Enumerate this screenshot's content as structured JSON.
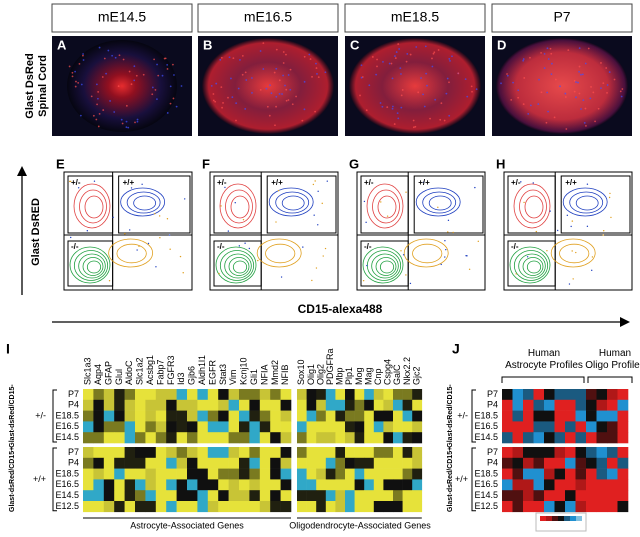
{
  "columns": [
    {
      "letter": "A",
      "stage": "mE14.5"
    },
    {
      "letter": "B",
      "stage": "mE16.5"
    },
    {
      "letter": "C",
      "stage": "mE18.5"
    },
    {
      "letter": "D",
      "stage": "P7"
    }
  ],
  "image_row_label": [
    "Glast DsRed",
    "Spinal Cord"
  ],
  "flow": {
    "letters": [
      "E",
      "F",
      "G",
      "H"
    ],
    "y_label": "Glast DsRED",
    "x_label": "CD15-alexa488",
    "gates": [
      "+/-",
      "+/+",
      "-/-"
    ]
  },
  "heatmap_i": {
    "letter": "I",
    "astrocyte_genes": [
      "Slc1a3",
      "Aqp4",
      "GFAP",
      "Glul",
      "AldoC",
      "Slc1a2",
      "Acsbg1",
      "Fabp7",
      "FGFR3",
      "Id3",
      "Gjb6",
      "Aldh1l1",
      "EGFR",
      "Stat3",
      "Vim",
      "Kcnj10",
      "Gli1",
      "NFIA",
      "Mmd2",
      "NFIB"
    ],
    "oligo_genes": [
      "Sox10",
      "Olig1",
      "Olig2",
      "PDGFRa",
      "Mbp",
      "Plp1",
      "Mog",
      "Mag",
      "Cnp",
      "Cspg4",
      "GalC",
      "Nkx2.2",
      "Gjc2"
    ],
    "groups": [
      {
        "sign": "+/-",
        "label": "Glast-dsRed/CD15-",
        "rows": [
          "P7",
          "P4",
          "E18.5",
          "E16.5",
          "E14.5"
        ]
      },
      {
        "sign": "+/+",
        "label": "Glast-dsRed/CD15+",
        "rows": [
          "P7",
          "P4",
          "E18.5",
          "E16.5",
          "E14.5",
          "E12.5"
        ]
      }
    ],
    "astrocyte_caption": "Astrocyte-Associated Genes",
    "oligo_caption": "Oligodendrocyte-Associated Genes"
  },
  "heatmap_j": {
    "letter": "J",
    "astrocyte_header": [
      "Human",
      "Astrocyte Profiles"
    ],
    "oligo_header": [
      "Human",
      "Oligo Profiles"
    ]
  }
}
